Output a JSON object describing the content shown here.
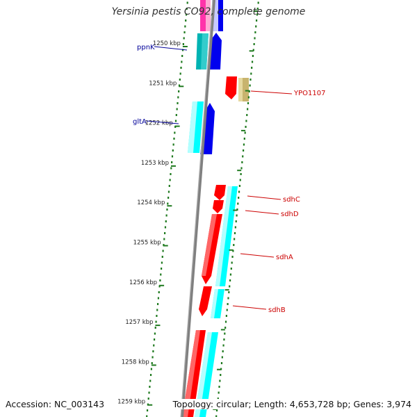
{
  "title": "Yersinia pestis CO92, complete genome",
  "accession_text": "Accession: NC_003143",
  "summary_text": "Topology: circular; Length: 4,653,728 bp; Genes: 3,974",
  "colors": {
    "backbone": "#808080",
    "dots": "#1f7a1f",
    "ticks": "#1f7a1f",
    "gene_red": "#ff0000",
    "gene_cyan": "#00ffff",
    "gene_blue": "#0000ee",
    "gene_teal": "#00b3b3",
    "gene_magenta": "#ff33aa",
    "gene_lavender": "#c8c8ff",
    "gene_khaki": "#c8b46e",
    "label_red": "#cc0000",
    "label_blue": "#000099"
  },
  "ruler": [
    {
      "label": "1250 kbp"
    },
    {
      "label": "1251 kbp"
    },
    {
      "label": "1252 kbp"
    },
    {
      "label": "1253 kbp"
    },
    {
      "label": "1254 kbp"
    },
    {
      "label": "1255 kbp"
    },
    {
      "label": "1256 kbp"
    },
    {
      "label": "1257 kbp"
    },
    {
      "label": "1258 kbp"
    },
    {
      "label": "1259 kbp"
    }
  ],
  "gene_labels": [
    {
      "name": "ppnK",
      "color": "label_blue"
    },
    {
      "name": "YPO1107",
      "color": "label_red"
    },
    {
      "name": "gltA",
      "color": "label_blue"
    },
    {
      "name": "sdhC",
      "color": "label_red"
    },
    {
      "name": "sdhD",
      "color": "label_red"
    },
    {
      "name": "sdhA",
      "color": "label_red"
    },
    {
      "name": "sdhB",
      "color": "label_red"
    }
  ]
}
